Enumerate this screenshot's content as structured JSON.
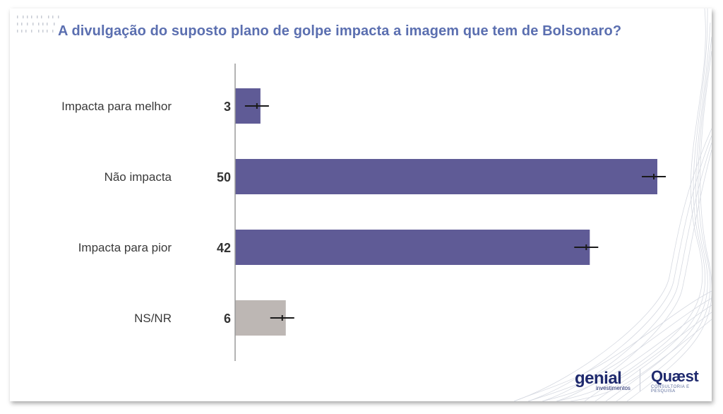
{
  "chart_data": {
    "type": "bar",
    "orientation": "horizontal",
    "title": "A divulgação do suposto plano de golpe impacta a imagem que tem de Bolsonaro?",
    "categories": [
      "Impacta para melhor",
      "Não impacta",
      "Impacta para pior",
      "NS/NR"
    ],
    "values": [
      3,
      50,
      42,
      6
    ],
    "error_margin": 1,
    "xlim": [
      0,
      50
    ],
    "grid": false,
    "colors": [
      "#5f5b96",
      "#5f5b96",
      "#5f5b96",
      "#bdb7b4"
    ]
  },
  "logos": {
    "genial": "genial",
    "genial_sub": "investimentos",
    "quaest": "Quæst",
    "quaest_sub": "CONSULTORIA E PESQUISA"
  }
}
